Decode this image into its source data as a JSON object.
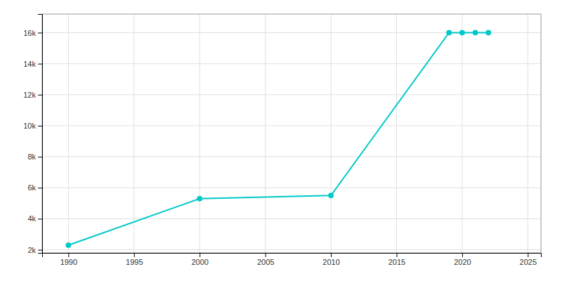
{
  "chart_data": {
    "type": "line",
    "x": [
      1990,
      2000,
      2010,
      2019,
      2020,
      2021,
      2022
    ],
    "values": [
      2300,
      5300,
      5500,
      16000,
      16000,
      16000,
      16000
    ],
    "color": "#00C8C8",
    "marker": "circle",
    "xlim": [
      1988,
      2026
    ],
    "ylim": [
      1800,
      17200
    ],
    "xticks": [
      1990,
      1995,
      2000,
      2005,
      2010,
      2015,
      2020,
      2025
    ],
    "yticks": [
      {
        "value": 2000,
        "label": "2k"
      },
      {
        "value": 4000,
        "label": "4k"
      },
      {
        "value": 6000,
        "label": "6k"
      },
      {
        "value": 8000,
        "label": "8k"
      },
      {
        "value": 10000,
        "label": "10k"
      },
      {
        "value": 12000,
        "label": "12k"
      },
      {
        "value": 14000,
        "label": "14k"
      },
      {
        "value": 16000,
        "label": "16k"
      }
    ],
    "grid": true
  }
}
